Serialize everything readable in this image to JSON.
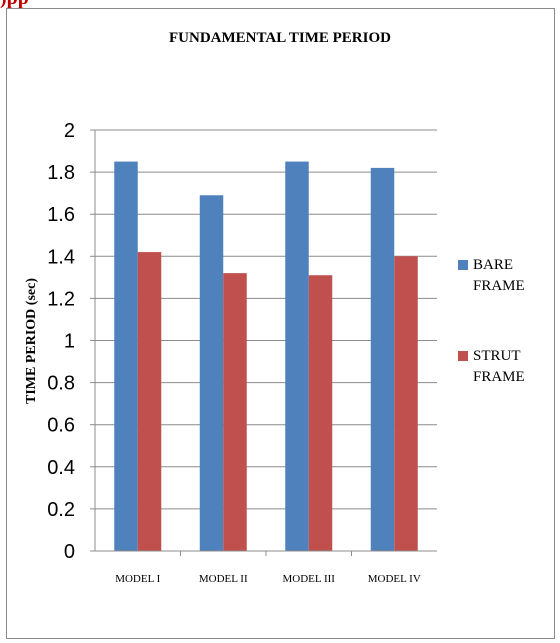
{
  "header_fragment": ")pp",
  "chart_data": {
    "type": "bar",
    "title": "FUNDAMENTAL TIME PERIOD",
    "xlabel": "",
    "ylabel": "TIME PERIOD (sec)",
    "categories": [
      "MODEL I",
      "MODEL II",
      "MODEL III",
      "MODEL IV"
    ],
    "series": [
      {
        "name": "BARE\nFRAME",
        "color": "#4f81bd",
        "values": [
          1.85,
          1.69,
          1.85,
          1.82
        ]
      },
      {
        "name": "STRUT\nFRAME",
        "color": "#c0504d",
        "values": [
          1.42,
          1.32,
          1.31,
          1.4
        ]
      }
    ],
    "ylim": [
      0,
      2
    ],
    "yticks": [
      "0",
      "0.2",
      "0.4",
      "0.6",
      "0.8",
      "1",
      "1.2",
      "1.4",
      "1.6",
      "1.8",
      "2"
    ],
    "grid": true,
    "legend": "right"
  }
}
